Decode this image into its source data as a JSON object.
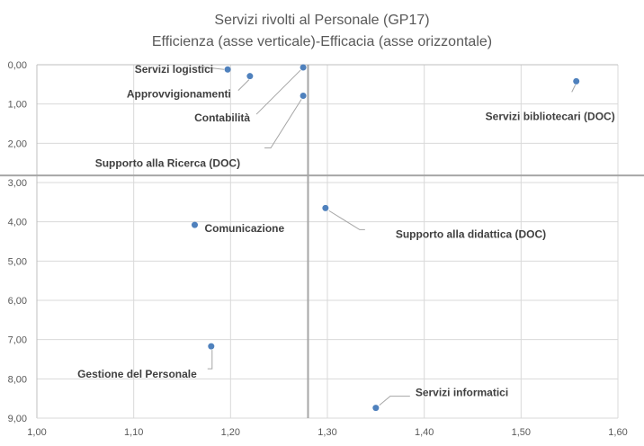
{
  "chart_data": {
    "type": "scatter",
    "title": "Servizi rivolti al Personale (GP17)",
    "subtitle": "Efficienza (asse verticale)-Efficacia (asse orizzontale)",
    "xlim": [
      1.0,
      1.6
    ],
    "ylim": [
      0,
      9
    ],
    "y_inverted": true,
    "grid": true,
    "x_ticks": [
      "1,00",
      "1,10",
      "1,20",
      "1,30",
      "1,40",
      "1,50",
      "1,60"
    ],
    "y_ticks": [
      "0,00",
      "1,00",
      "2,00",
      "3,00",
      "4,00",
      "5,00",
      "6,00",
      "7,00",
      "8,00",
      "9,00"
    ],
    "reference_lines": {
      "x": 1.28,
      "y": 2.82
    },
    "marker_color": "#4f81bd",
    "points": [
      {
        "label": "Servizi logistici",
        "x": 1.197,
        "y": 0.12
      },
      {
        "label": "Approvvigionamenti",
        "x": 1.22,
        "y": 0.29
      },
      {
        "label": "Contabilità",
        "x": 1.275,
        "y": 0.07
      },
      {
        "label": "Supporto alla  Ricerca (DOC)",
        "x": 1.275,
        "y": 0.79
      },
      {
        "label": "Servizi bibliotecari (DOC)",
        "x": 1.557,
        "y": 0.42
      },
      {
        "label": "Supporto alla didattica (DOC)",
        "x": 1.298,
        "y": 3.65
      },
      {
        "label": "Comunicazione",
        "x": 1.163,
        "y": 4.08
      },
      {
        "label": "Gestione del Personale",
        "x": 1.18,
        "y": 7.17
      },
      {
        "label": "Servizi informatici",
        "x": 1.35,
        "y": 8.74
      }
    ]
  }
}
